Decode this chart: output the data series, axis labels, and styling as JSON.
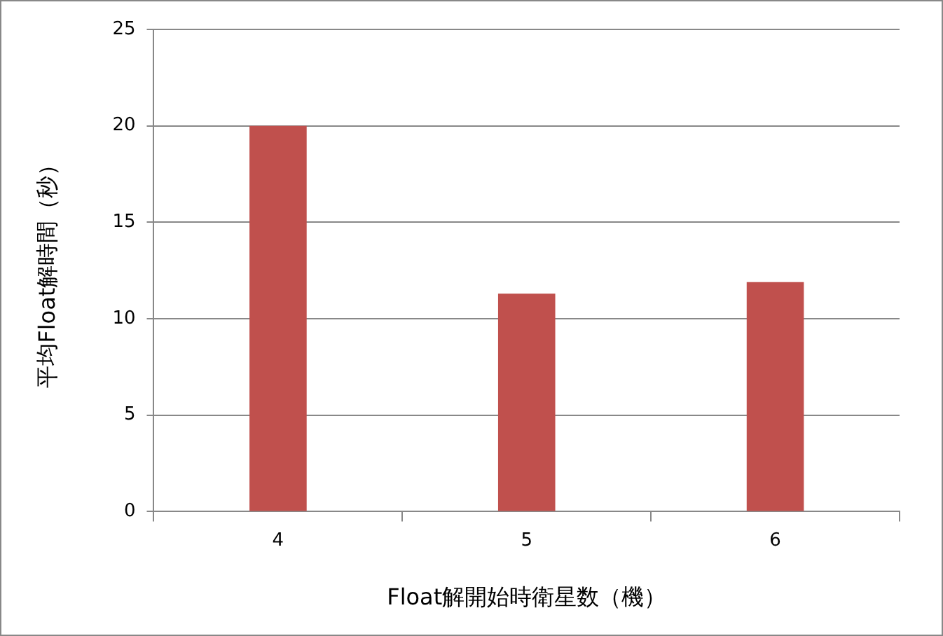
{
  "chart_data": {
    "type": "bar",
    "xlabel": "Float解開始時衛星数（機）",
    "ylabel": "平均Float解時間（秒）",
    "categories": [
      "4",
      "5",
      "6"
    ],
    "values": [
      20,
      11.3,
      11.9
    ],
    "color": "#c0504d",
    "ylim": [
      0,
      25
    ],
    "yticks": [
      0,
      5,
      10,
      15,
      20,
      25
    ],
    "grid": "y",
    "legend": false
  }
}
